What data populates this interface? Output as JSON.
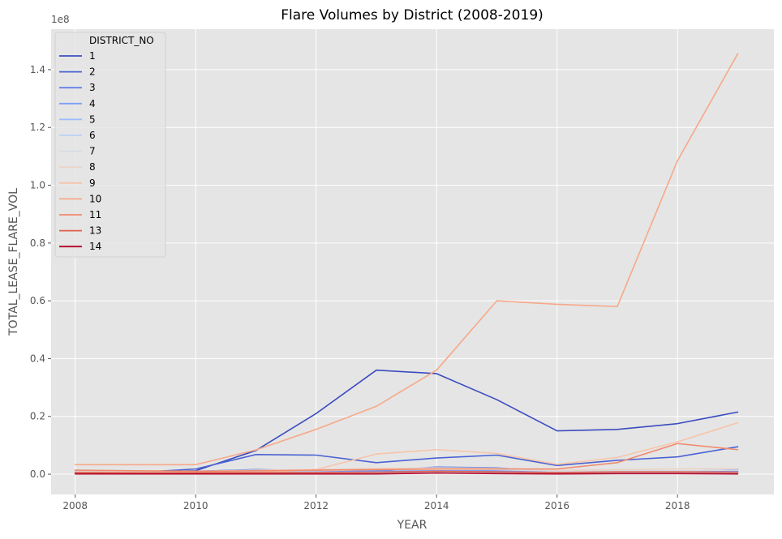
{
  "chart_data": {
    "type": "line",
    "title": "Flare Volumes by District (2008-2019)",
    "xlabel": "YEAR",
    "ylabel": "TOTAL_LEASE_FLARE_VOL",
    "y_offset_label": "1e8",
    "xlim": [
      2007.6,
      2019.6
    ],
    "ylim": [
      -0.07,
      1.54
    ],
    "x_ticks": [
      2008,
      2010,
      2012,
      2014,
      2016,
      2018
    ],
    "x_tick_labels": [
      "2008",
      "2010",
      "2012",
      "2014",
      "2016",
      "2018"
    ],
    "y_ticks": [
      0.0,
      0.2,
      0.4,
      0.6,
      0.8,
      1.0,
      1.2,
      1.4
    ],
    "y_tick_labels": [
      "0.0",
      "0.2",
      "0.4",
      "0.6",
      "0.8",
      "1.0",
      "1.2",
      "1.4"
    ],
    "grid": true,
    "legend_title": "DISTRICT_NO",
    "legend_position": "top-left",
    "x": [
      2008,
      2009,
      2010,
      2011,
      2012,
      2013,
      2014,
      2015,
      2016,
      2017,
      2018,
      2019
    ],
    "series": [
      {
        "name": "1",
        "color": "#3b4cc0",
        "values": [
          0.012,
          0.008,
          0.012,
          0.082,
          0.21,
          0.36,
          0.348,
          0.258,
          0.15,
          0.155,
          0.175,
          0.215
        ]
      },
      {
        "name": "2",
        "color": "#4a63d3",
        "values": [
          0.008,
          0.006,
          0.018,
          0.068,
          0.066,
          0.04,
          0.056,
          0.066,
          0.03,
          0.048,
          0.06,
          0.095
        ]
      },
      {
        "name": "3",
        "color": "#6282ea",
        "values": [
          0.008,
          0.008,
          0.01,
          0.016,
          0.012,
          0.012,
          0.025,
          0.022,
          0.008,
          0.012,
          0.01,
          0.015
        ]
      },
      {
        "name": "4",
        "color": "#7b9ff9",
        "values": [
          0.006,
          0.006,
          0.006,
          0.008,
          0.008,
          0.01,
          0.012,
          0.012,
          0.006,
          0.008,
          0.008,
          0.01
        ]
      },
      {
        "name": "5",
        "color": "#9abbff",
        "values": [
          0.004,
          0.004,
          0.004,
          0.005,
          0.005,
          0.006,
          0.007,
          0.007,
          0.005,
          0.006,
          0.006,
          0.006
        ]
      },
      {
        "name": "6",
        "color": "#b9d0f9",
        "values": [
          0.003,
          0.003,
          0.003,
          0.004,
          0.004,
          0.004,
          0.005,
          0.005,
          0.004,
          0.004,
          0.004,
          0.004
        ]
      },
      {
        "name": "7",
        "color": "#d5dbe5",
        "values": [
          0.01,
          0.008,
          0.008,
          0.01,
          0.012,
          0.016,
          0.018,
          0.016,
          0.01,
          0.012,
          0.012,
          0.014
        ]
      },
      {
        "name": "8",
        "color": "#ead4c8",
        "values": [
          0.012,
          0.01,
          0.01,
          0.014,
          0.016,
          0.02,
          0.022,
          0.02,
          0.014,
          0.016,
          0.018,
          0.02
        ]
      },
      {
        "name": "9",
        "color": "#f7c4a9",
        "values": [
          0.004,
          0.004,
          0.004,
          0.006,
          0.016,
          0.07,
          0.085,
          0.072,
          0.034,
          0.058,
          0.112,
          0.178
        ]
      },
      {
        "name": "10",
        "color": "#f7a889",
        "values": [
          0.033,
          0.033,
          0.033,
          0.084,
          0.155,
          0.235,
          0.36,
          0.6,
          0.588,
          0.58,
          1.085,
          1.455
        ]
      },
      {
        "name": "11",
        "color": "#f08a6c",
        "values": [
          0.014,
          0.012,
          0.01,
          0.012,
          0.014,
          0.016,
          0.018,
          0.018,
          0.018,
          0.04,
          0.106,
          0.085
        ]
      },
      {
        "name": "13",
        "color": "#de614d",
        "values": [
          0.006,
          0.005,
          0.005,
          0.006,
          0.006,
          0.007,
          0.01,
          0.008,
          0.006,
          0.008,
          0.008,
          0.007
        ]
      },
      {
        "name": "14",
        "color": "#b40426",
        "values": [
          0.001,
          0.001,
          0.001,
          0.001,
          0.001,
          0.001,
          0.004,
          0.002,
          0.001,
          0.002,
          0.002,
          0.001
        ]
      }
    ]
  }
}
